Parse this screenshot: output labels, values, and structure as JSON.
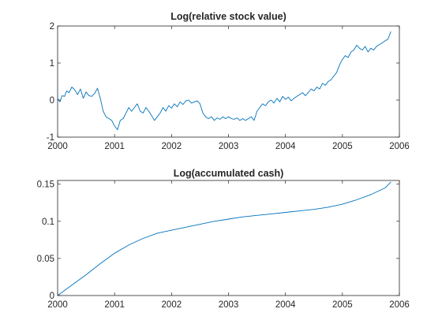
{
  "colors": {
    "series": "#0072bd",
    "axis": "#262626",
    "background": "#ffffff"
  },
  "chart_data": [
    {
      "type": "line",
      "title": "Log(relative stock value)",
      "xlabel": "",
      "ylabel": "",
      "xlim": [
        2000,
        2006
      ],
      "ylim": [
        -1,
        2
      ],
      "xticks": [
        2000,
        2001,
        2002,
        2003,
        2004,
        2005,
        2006
      ],
      "xtick_labels": [
        "2000",
        "2001",
        "2002",
        "2003",
        "2004",
        "2005",
        "2006"
      ],
      "yticks": [
        -1,
        0,
        1,
        2
      ],
      "ytick_labels": [
        "-1",
        "0",
        "1",
        "2"
      ],
      "grid": false,
      "series": [
        {
          "x": [
            2000.0,
            2000.04,
            2000.08,
            2000.12,
            2000.16,
            2000.2,
            2000.25,
            2000.3,
            2000.35,
            2000.4,
            2000.45,
            2000.5,
            2000.55,
            2000.6,
            2000.65,
            2000.7,
            2000.72,
            2000.75,
            2000.8,
            2000.85,
            2000.9,
            2000.95,
            2001.0,
            2001.05,
            2001.1,
            2001.15,
            2001.2,
            2001.25,
            2001.3,
            2001.35,
            2001.4,
            2001.45,
            2001.5,
            2001.55,
            2001.6,
            2001.65,
            2001.7,
            2001.75,
            2001.8,
            2001.85,
            2001.9,
            2001.95,
            2002.0,
            2002.05,
            2002.1,
            2002.15,
            2002.2,
            2002.25,
            2002.3,
            2002.35,
            2002.4,
            2002.45,
            2002.5,
            2002.55,
            2002.6,
            2002.65,
            2002.7,
            2002.75,
            2002.8,
            2002.85,
            2002.9,
            2002.95,
            2003.0,
            2003.05,
            2003.1,
            2003.15,
            2003.2,
            2003.25,
            2003.3,
            2003.35,
            2003.4,
            2003.45,
            2003.5,
            2003.55,
            2003.6,
            2003.65,
            2003.7,
            2003.75,
            2003.8,
            2003.85,
            2003.9,
            2003.95,
            2004.0,
            2004.05,
            2004.1,
            2004.15,
            2004.2,
            2004.25,
            2004.3,
            2004.35,
            2004.4,
            2004.45,
            2004.5,
            2004.55,
            2004.6,
            2004.65,
            2004.7,
            2004.75,
            2004.8,
            2004.85,
            2004.9,
            2004.95,
            2005.0,
            2005.05,
            2005.1,
            2005.15,
            2005.2,
            2005.25,
            2005.3,
            2005.35,
            2005.4,
            2005.45,
            2005.5,
            2005.55,
            2005.6,
            2005.65,
            2005.7,
            2005.75,
            2005.8,
            2005.85
          ],
          "y": [
            0.05,
            -0.05,
            0.12,
            0.1,
            0.25,
            0.2,
            0.35,
            0.28,
            0.15,
            0.3,
            0.05,
            0.22,
            0.12,
            0.1,
            0.18,
            0.32,
            0.2,
            0.05,
            -0.3,
            -0.45,
            -0.5,
            -0.55,
            -0.7,
            -0.8,
            -0.55,
            -0.5,
            -0.35,
            -0.2,
            -0.3,
            -0.2,
            -0.1,
            -0.3,
            -0.35,
            -0.2,
            -0.3,
            -0.42,
            -0.55,
            -0.45,
            -0.35,
            -0.2,
            -0.3,
            -0.15,
            -0.22,
            -0.1,
            -0.18,
            -0.05,
            -0.12,
            -0.02,
            0.0,
            -0.08,
            -0.05,
            -0.02,
            -0.1,
            -0.35,
            -0.45,
            -0.5,
            -0.45,
            -0.55,
            -0.48,
            -0.52,
            -0.45,
            -0.5,
            -0.45,
            -0.5,
            -0.52,
            -0.48,
            -0.55,
            -0.5,
            -0.55,
            -0.5,
            -0.45,
            -0.55,
            -0.3,
            -0.2,
            -0.1,
            -0.15,
            -0.05,
            0.0,
            -0.08,
            0.05,
            -0.05,
            0.1,
            0.02,
            0.08,
            -0.02,
            0.05,
            0.1,
            0.15,
            0.2,
            0.12,
            0.2,
            0.3,
            0.25,
            0.35,
            0.3,
            0.45,
            0.4,
            0.5,
            0.55,
            0.65,
            0.75,
            0.95,
            1.1,
            1.2,
            1.15,
            1.3,
            1.35,
            1.48,
            1.4,
            1.35,
            1.45,
            1.3,
            1.4,
            1.35,
            1.45,
            1.5,
            1.55,
            1.6,
            1.65,
            1.85
          ]
        }
      ]
    },
    {
      "type": "line",
      "title": "Log(accumulated cash)",
      "xlabel": "",
      "ylabel": "",
      "xlim": [
        2000,
        2006
      ],
      "ylim": [
        0,
        0.155
      ],
      "xticks": [
        2000,
        2001,
        2002,
        2003,
        2004,
        2005,
        2006
      ],
      "xtick_labels": [
        "2000",
        "2001",
        "2002",
        "2003",
        "2004",
        "2005",
        "2006"
      ],
      "yticks": [
        0,
        0.05,
        0.1,
        0.15
      ],
      "ytick_labels": [
        "0",
        "0.05",
        "0.1",
        "0.15"
      ],
      "grid": false,
      "series": [
        {
          "x": [
            2000.0,
            2000.25,
            2000.5,
            2000.75,
            2001.0,
            2001.25,
            2001.5,
            2001.75,
            2002.0,
            2002.25,
            2002.5,
            2002.75,
            2003.0,
            2003.25,
            2003.5,
            2003.75,
            2004.0,
            2004.25,
            2004.5,
            2004.75,
            2005.0,
            2005.25,
            2005.5,
            2005.75,
            2005.85
          ],
          "y": [
            0.0,
            0.014,
            0.028,
            0.043,
            0.057,
            0.068,
            0.077,
            0.084,
            0.088,
            0.092,
            0.096,
            0.1,
            0.103,
            0.106,
            0.108,
            0.11,
            0.112,
            0.114,
            0.116,
            0.119,
            0.123,
            0.129,
            0.136,
            0.145,
            0.153
          ]
        }
      ]
    }
  ]
}
